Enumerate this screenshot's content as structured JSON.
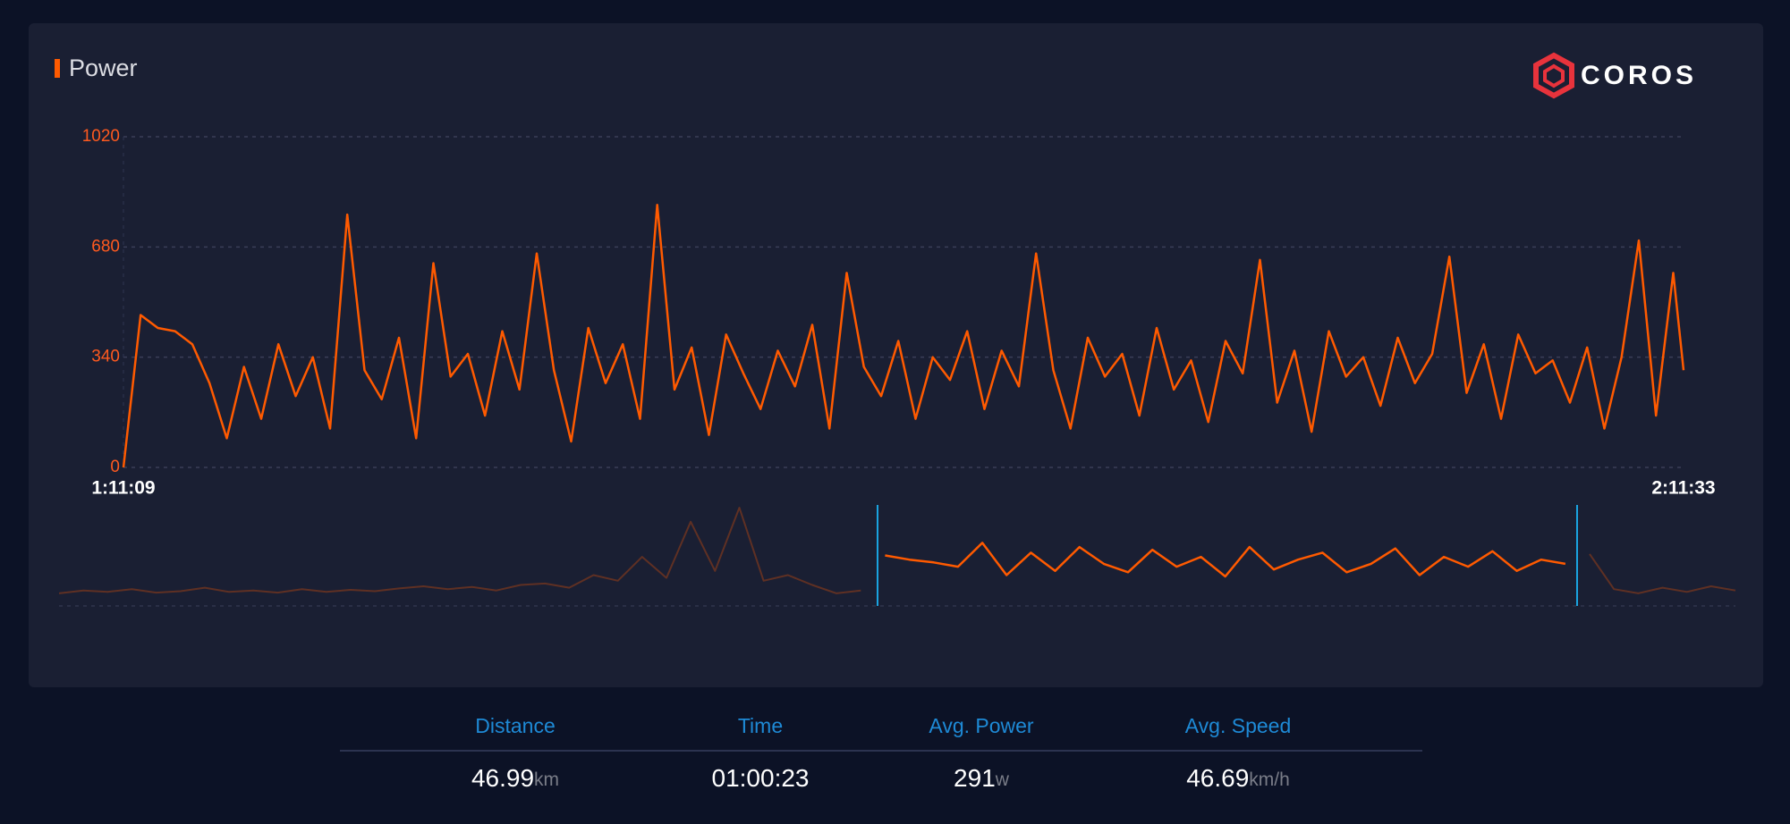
{
  "header": {
    "title": "Power"
  },
  "logo": {
    "text": "COROS"
  },
  "chart_data": [
    {
      "type": "line",
      "title": "Power",
      "color": "#ff5a00",
      "ylim": [
        0,
        1020
      ],
      "yticks": [
        0,
        340,
        680,
        1020
      ],
      "grid": true,
      "xlim": [
        0,
        3624
      ],
      "xticks": [
        {
          "value": 0,
          "label": "1:11:09"
        },
        {
          "value": 3624,
          "label": "2:11:33"
        }
      ],
      "x": [
        0,
        40,
        80,
        120,
        160,
        200,
        240,
        280,
        320,
        360,
        400,
        440,
        480,
        520,
        560,
        600,
        640,
        680,
        720,
        760,
        800,
        840,
        880,
        920,
        960,
        1000,
        1040,
        1080,
        1120,
        1160,
        1200,
        1240,
        1280,
        1320,
        1360,
        1400,
        1440,
        1480,
        1520,
        1560,
        1600,
        1640,
        1680,
        1720,
        1760,
        1800,
        1840,
        1880,
        1920,
        1960,
        2000,
        2040,
        2080,
        2120,
        2160,
        2200,
        2240,
        2280,
        2320,
        2360,
        2400,
        2440,
        2480,
        2520,
        2560,
        2600,
        2640,
        2680,
        2720,
        2760,
        2800,
        2840,
        2880,
        2920,
        2960,
        3000,
        3040,
        3080,
        3120,
        3160,
        3200,
        3240,
        3280,
        3320,
        3360,
        3400,
        3440,
        3480,
        3520,
        3560,
        3600,
        3624
      ],
      "values": [
        0,
        470,
        430,
        420,
        380,
        260,
        90,
        310,
        150,
        380,
        220,
        340,
        120,
        780,
        300,
        210,
        400,
        90,
        630,
        280,
        350,
        160,
        420,
        240,
        660,
        300,
        80,
        430,
        260,
        380,
        150,
        810,
        240,
        370,
        100,
        410,
        290,
        180,
        360,
        250,
        440,
        120,
        600,
        310,
        220,
        390,
        150,
        340,
        270,
        420,
        180,
        360,
        250,
        660,
        300,
        120,
        400,
        280,
        350,
        160,
        430,
        240,
        330,
        140,
        390,
        290,
        640,
        200,
        360,
        110,
        420,
        280,
        340,
        190,
        400,
        260,
        350,
        650,
        230,
        380,
        150,
        410,
        290,
        330,
        200,
        370,
        120,
        340,
        700,
        160,
        600,
        300
      ]
    },
    {
      "type": "line",
      "color": "#ff5a00",
      "ylim": [
        0,
        720
      ],
      "values": [
        90,
        110,
        100,
        120,
        95,
        105,
        130,
        100,
        110,
        95,
        120,
        100,
        115,
        105,
        125,
        140,
        120,
        135,
        110,
        150,
        160,
        130,
        220,
        180,
        350,
        200,
        600,
        250,
        700,
        180,
        220,
        150,
        90,
        110,
        360,
        330,
        310,
        280,
        450,
        220,
        380,
        250,
        420,
        300,
        240,
        400,
        280,
        350,
        210,
        420,
        260,
        330,
        380,
        240,
        300,
        410,
        220,
        350,
        280,
        390,
        250,
        330,
        300,
        370,
        120,
        90,
        130,
        100,
        140,
        110
      ]
    }
  ],
  "stats": [
    {
      "label": "Distance",
      "value": "46.99",
      "unit": "km"
    },
    {
      "label": "Time",
      "value": "01:00:23"
    },
    {
      "label": "Avg. Power",
      "value": "291",
      "unit": "w"
    },
    {
      "label": "Avg. Speed",
      "value": "46.69",
      "unit": "km/h"
    }
  ]
}
